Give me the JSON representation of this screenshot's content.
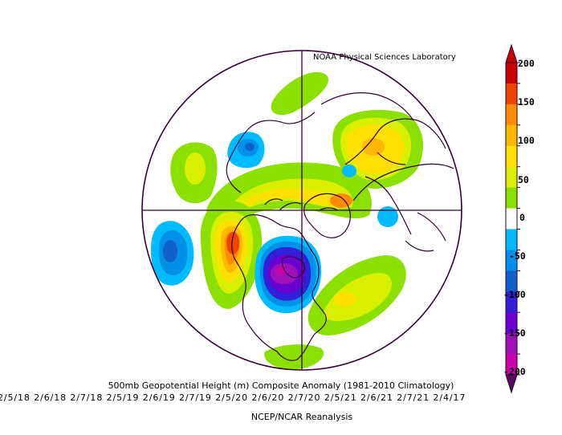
{
  "credit": "NOAA Physical Sciences Laboratory",
  "title": "500mb Geopotential Height (m) Composite Anomaly (1981-2010 Climatology)",
  "dates": "2/5/18 2/6/18 2/7/18 2/5/19 2/6/19 2/7/19 2/5/20 2/6/20 2/7/20 2/5/21 2/6/21 2/7/21 2/4/17",
  "source": "NCEP/NCAR Reanalysis",
  "colorbar": {
    "labels": [
      "200",
      "150",
      "100",
      "50",
      "0",
      "-50",
      "-100",
      "-150",
      "-200"
    ],
    "colors": [
      "#c80000",
      "#ee4400",
      "#ff8c00",
      "#ffb800",
      "#ffe000",
      "#d8f000",
      "#8ce000",
      "#ffffff",
      "#00bbff",
      "#0090e8",
      "#1060c8",
      "#3020d8",
      "#6a00d0",
      "#a010b8",
      "#cc00aa"
    ]
  },
  "colors": {
    "boundary": "#330033",
    "frame": "#2a0030"
  }
}
